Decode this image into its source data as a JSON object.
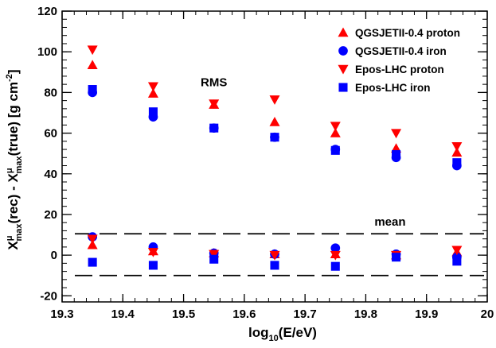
{
  "chart_data": {
    "type": "scatter",
    "xlabel": {
      "prefix": "log",
      "sub": "10",
      "suffix": "(E/eV)"
    },
    "ylabel": {
      "p1": "X",
      "p1_sup": "μ",
      "p1_sub": "max",
      "p2": "(rec) - X",
      "p2_sup": "μ",
      "p2_sub": "max",
      "p3": "(true) [g cm",
      "p3_sup": "-2",
      "p3_end": "]"
    },
    "xlim": [
      19.3,
      20.0
    ],
    "ylim": [
      -23,
      120
    ],
    "x_ticks": [
      19.3,
      19.4,
      19.5,
      19.6,
      19.7,
      19.8,
      19.9,
      20.0
    ],
    "x_tick_labels": [
      "19.3",
      "19.4",
      "19.5",
      "19.6",
      "19.7",
      "19.8",
      "19.9",
      "20"
    ],
    "y_ticks": [
      -20,
      0,
      20,
      40,
      60,
      80,
      100,
      120
    ],
    "y_tick_labels": [
      "-20",
      "0",
      "20",
      "40",
      "60",
      "80",
      "100",
      "120"
    ],
    "grid": false,
    "legend_position": "top-right",
    "annotations": [
      {
        "text": "RMS",
        "x": 19.55,
        "y": 83
      },
      {
        "text": "mean",
        "x": 19.84,
        "y": 14.5
      }
    ],
    "reference_lines": [
      10.5,
      -10
    ],
    "series": [
      {
        "name": "QGSJETII-0.4 proton",
        "marker": "triangle-up",
        "color": "#ff0000",
        "x": [
          19.35,
          19.45,
          19.55,
          19.65,
          19.75,
          19.85,
          19.95,
          19.35,
          19.45,
          19.55,
          19.65,
          19.75,
          19.85,
          19.95
        ],
        "y": [
          93.5,
          79.5,
          74,
          65.5,
          60,
          52.5,
          50.5,
          5,
          2,
          1,
          0.5,
          0.5,
          0,
          1.5
        ],
        "group": [
          "rms",
          "rms",
          "rms",
          "rms",
          "rms",
          "rms",
          "rms",
          "mean",
          "mean",
          "mean",
          "mean",
          "mean",
          "mean",
          "mean"
        ]
      },
      {
        "name": "QGSJETII-0.4 iron",
        "marker": "circle",
        "color": "#0000ff",
        "x": [
          19.35,
          19.45,
          19.55,
          19.65,
          19.75,
          19.85,
          19.95,
          19.35,
          19.45,
          19.55,
          19.65,
          19.75,
          19.85,
          19.95
        ],
        "y": [
          80,
          68,
          62.5,
          58,
          52,
          48,
          44,
          9,
          4,
          1,
          0.5,
          3.5,
          0.5,
          -1
        ],
        "group": [
          "rms",
          "rms",
          "rms",
          "rms",
          "rms",
          "rms",
          "rms",
          "mean",
          "mean",
          "mean",
          "mean",
          "mean",
          "mean",
          "mean"
        ]
      },
      {
        "name": "Epos-LHC proton",
        "marker": "triangle-down",
        "color": "#ff0000",
        "x": [
          19.35,
          19.45,
          19.55,
          19.65,
          19.75,
          19.85,
          19.95,
          19.35,
          19.45,
          19.55,
          19.65,
          19.75,
          19.85,
          19.95
        ],
        "y": [
          101,
          83,
          74.5,
          76.5,
          63.5,
          60,
          53.5,
          8,
          1.5,
          0.5,
          0,
          0,
          0,
          2.5
        ],
        "group": [
          "rms",
          "rms",
          "rms",
          "rms",
          "rms",
          "rms",
          "rms",
          "mean",
          "mean",
          "mean",
          "mean",
          "mean",
          "mean",
          "mean"
        ]
      },
      {
        "name": "Epos-LHC iron",
        "marker": "square",
        "color": "#0000ff",
        "x": [
          19.35,
          19.45,
          19.55,
          19.65,
          19.75,
          19.85,
          19.95,
          19.35,
          19.45,
          19.55,
          19.65,
          19.75,
          19.85,
          19.95
        ],
        "y": [
          81.5,
          70.5,
          62.5,
          58,
          51.5,
          49.5,
          45.5,
          -3.5,
          -5,
          -2,
          -5,
          -5.5,
          -1,
          -3
        ],
        "group": [
          "rms",
          "rms",
          "rms",
          "rms",
          "rms",
          "rms",
          "rms",
          "mean",
          "mean",
          "mean",
          "mean",
          "mean",
          "mean",
          "mean"
        ]
      }
    ]
  }
}
